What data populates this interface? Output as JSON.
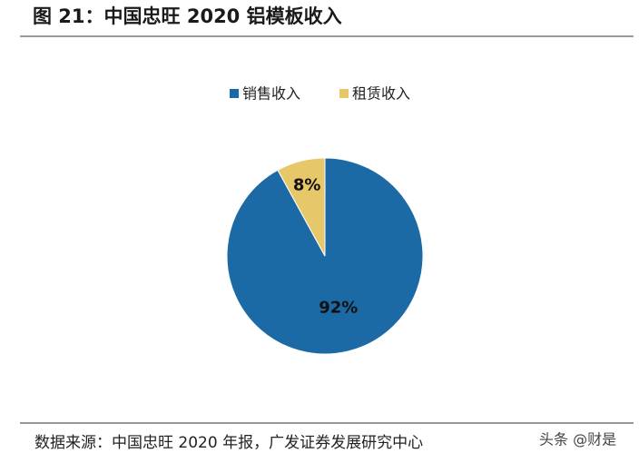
{
  "chart_data": {
    "type": "pie",
    "title": "图 21：中国忠旺 2020 铝模板收入",
    "categories": [
      "销售收入",
      "租赁收入"
    ],
    "values": [
      92,
      8
    ],
    "value_labels": [
      "92%",
      "8%"
    ],
    "colors": [
      "#1b6aa5",
      "#e6c76a"
    ],
    "legend": "top",
    "source": "数据来源：中国忠旺 2020 年报，广发证券发展研究中心",
    "watermark": "头条 @财是"
  }
}
